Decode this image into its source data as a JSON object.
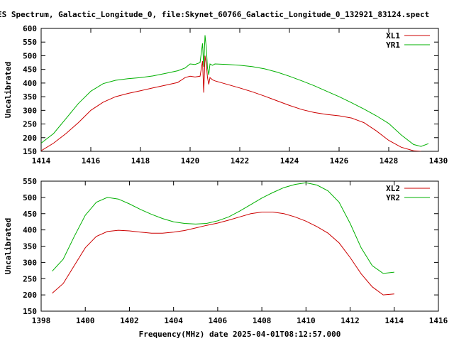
{
  "page": {
    "title": "ES Spectrum, Galactic_Longitude_0, file:Skynet_60766_Galactic_Longitude_0_132921_83124.spect",
    "xlabel": "Frequency(MHz) date 2025-04-01T08:12:57.000"
  },
  "chart_data": [
    {
      "type": "line",
      "ylabel": "Uncalibrated",
      "xlim": [
        1414,
        1430
      ],
      "ylim": [
        150,
        600
      ],
      "xticks": [
        "1414",
        "1416",
        "1418",
        "1420",
        "1422",
        "1424",
        "1426",
        "1428",
        "1430"
      ],
      "yticks": [
        "150",
        "200",
        "250",
        "300",
        "350",
        "400",
        "450",
        "500",
        "550",
        "600"
      ],
      "legend_position": "top-right",
      "series": [
        {
          "name": "XL1",
          "color": "#cc0000",
          "x": [
            1414.0,
            1414.5,
            1415.0,
            1415.5,
            1416.0,
            1416.5,
            1417.0,
            1417.5,
            1418.0,
            1418.5,
            1419.0,
            1419.5,
            1419.8,
            1420.0,
            1420.2,
            1420.4,
            1420.5,
            1420.55,
            1420.6,
            1420.65,
            1420.7,
            1420.75,
            1420.8,
            1420.9,
            1421.0,
            1421.5,
            1422.0,
            1422.5,
            1423.0,
            1423.5,
            1424.0,
            1424.5,
            1425.0,
            1425.5,
            1426.0,
            1426.5,
            1427.0,
            1427.5,
            1428.0,
            1428.5,
            1429.0,
            1429.3
          ],
          "y": [
            152,
            180,
            215,
            255,
            300,
            330,
            350,
            362,
            372,
            382,
            392,
            402,
            420,
            425,
            422,
            425,
            480,
            365,
            500,
            470,
            420,
            395,
            420,
            412,
            408,
            395,
            382,
            368,
            352,
            335,
            318,
            303,
            292,
            285,
            280,
            272,
            255,
            225,
            190,
            165,
            152,
            150
          ]
        },
        {
          "name": "YR1",
          "color": "#00b000",
          "x": [
            1414.0,
            1414.5,
            1415.0,
            1415.5,
            1416.0,
            1416.5,
            1417.0,
            1417.5,
            1418.0,
            1418.5,
            1419.0,
            1419.5,
            1419.8,
            1420.0,
            1420.2,
            1420.4,
            1420.5,
            1420.55,
            1420.6,
            1420.65,
            1420.7,
            1420.75,
            1420.8,
            1420.9,
            1421.0,
            1421.5,
            1422.0,
            1422.5,
            1423.0,
            1423.5,
            1424.0,
            1424.5,
            1425.0,
            1425.5,
            1426.0,
            1426.5,
            1427.0,
            1427.5,
            1428.0,
            1428.5,
            1429.0,
            1429.3,
            1429.6
          ],
          "y": [
            180,
            215,
            270,
            325,
            370,
            398,
            410,
            416,
            420,
            426,
            435,
            445,
            455,
            470,
            468,
            475,
            545,
            460,
            575,
            530,
            455,
            430,
            470,
            465,
            470,
            468,
            465,
            460,
            452,
            440,
            425,
            408,
            390,
            370,
            350,
            328,
            305,
            280,
            252,
            210,
            175,
            168,
            178
          ]
        }
      ]
    },
    {
      "type": "line",
      "ylabel": "Uncalibrated",
      "xlim": [
        1398,
        1416
      ],
      "ylim": [
        150,
        550
      ],
      "xticks": [
        "1398",
        "1400",
        "1402",
        "1404",
        "1406",
        "1408",
        "1410",
        "1412",
        "1414",
        "1416"
      ],
      "yticks": [
        "150",
        "200",
        "250",
        "300",
        "350",
        "400",
        "450",
        "500",
        "550"
      ],
      "legend_position": "top-right",
      "series": [
        {
          "name": "XL2",
          "color": "#cc0000",
          "x": [
            1398.5,
            1399.0,
            1399.5,
            1400.0,
            1400.5,
            1401.0,
            1401.5,
            1402.0,
            1402.5,
            1403.0,
            1403.5,
            1404.0,
            1404.5,
            1405.0,
            1405.5,
            1406.0,
            1406.5,
            1407.0,
            1407.5,
            1408.0,
            1408.5,
            1409.0,
            1409.5,
            1410.0,
            1410.5,
            1411.0,
            1411.5,
            1412.0,
            1412.5,
            1413.0,
            1413.5,
            1414.0
          ],
          "y": [
            205,
            235,
            290,
            345,
            380,
            395,
            399,
            397,
            393,
            390,
            390,
            393,
            398,
            406,
            414,
            421,
            430,
            440,
            450,
            455,
            455,
            450,
            440,
            427,
            410,
            390,
            360,
            315,
            265,
            225,
            200,
            203
          ]
        },
        {
          "name": "YR2",
          "color": "#00b000",
          "x": [
            1398.5,
            1399.0,
            1399.5,
            1400.0,
            1400.5,
            1401.0,
            1401.5,
            1402.0,
            1402.5,
            1403.0,
            1403.5,
            1404.0,
            1404.5,
            1405.0,
            1405.5,
            1406.0,
            1406.5,
            1407.0,
            1407.5,
            1408.0,
            1408.5,
            1409.0,
            1409.5,
            1410.0,
            1410.5,
            1411.0,
            1411.5,
            1412.0,
            1412.5,
            1413.0,
            1413.5,
            1414.0
          ],
          "y": [
            273,
            310,
            380,
            445,
            485,
            500,
            495,
            480,
            463,
            448,
            435,
            425,
            420,
            418,
            420,
            428,
            440,
            458,
            478,
            498,
            515,
            530,
            540,
            545,
            538,
            520,
            485,
            420,
            345,
            290,
            266,
            270
          ]
        }
      ]
    }
  ]
}
